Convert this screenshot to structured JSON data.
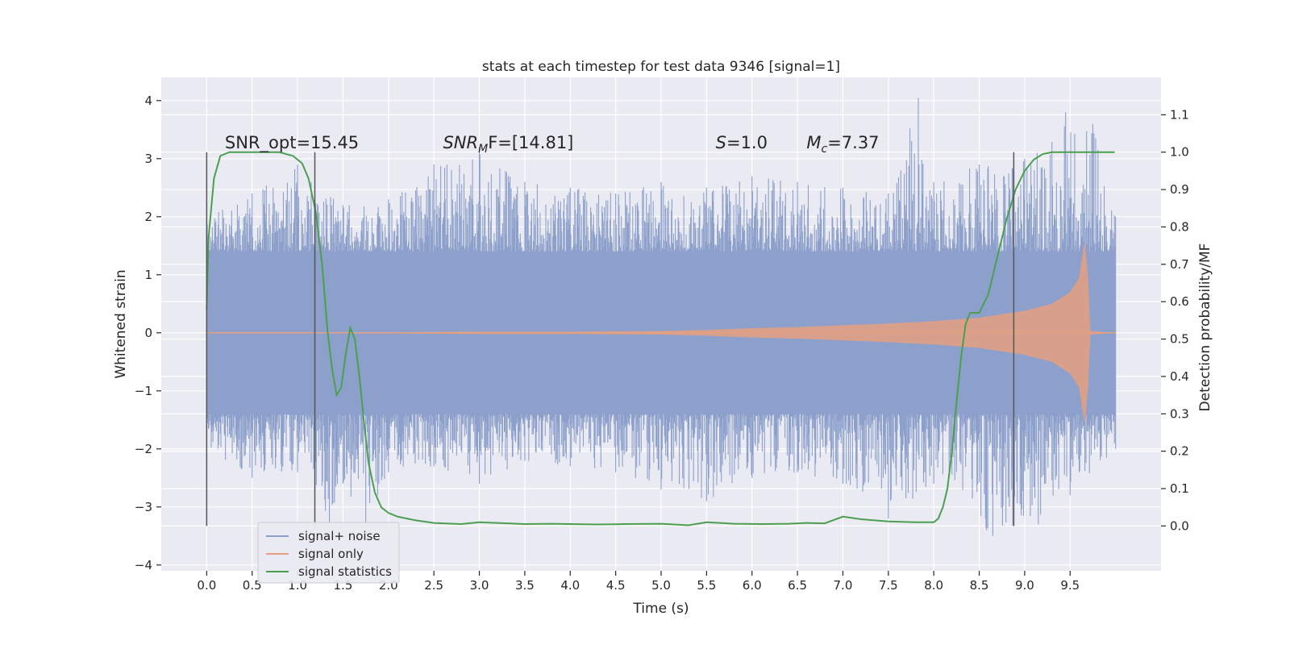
{
  "chart_data": {
    "type": "line",
    "title": "stats at each timestep for test data 9346 [signal=1]",
    "xlabel": "Time (s)",
    "ylabel": "Whitened strain",
    "y2label": "Detection probability/MF",
    "xlim": [
      -0.5,
      10.5
    ],
    "ylim": [
      -4.1,
      4.4
    ],
    "y2lim": [
      -0.12,
      1.2
    ],
    "xticks": [
      "0.0",
      "0.5",
      "1.0",
      "1.5",
      "2.0",
      "2.5",
      "3.0",
      "3.5",
      "4.0",
      "4.5",
      "5.0",
      "5.5",
      "6.0",
      "6.5",
      "7.0",
      "7.5",
      "8.0",
      "8.5",
      "9.0",
      "9.5"
    ],
    "xtick_values": [
      0.0,
      0.5,
      1.0,
      1.5,
      2.0,
      2.5,
      3.0,
      3.5,
      4.0,
      4.5,
      5.0,
      5.5,
      6.0,
      6.5,
      7.0,
      7.5,
      8.0,
      8.5,
      9.0,
      9.5
    ],
    "yticks": [
      "4",
      "3",
      "2",
      "1",
      "0",
      "−1",
      "−2",
      "−3",
      "−4"
    ],
    "ytick_values": [
      4,
      3,
      2,
      1,
      0,
      -1,
      -2,
      -3,
      -4
    ],
    "y2ticks": [
      "1.1",
      "1.0",
      "0.9",
      "0.8",
      "0.7",
      "0.6",
      "0.5",
      "0.4",
      "0.3",
      "0.2",
      "0.1",
      "0.0"
    ],
    "y2tick_values": [
      1.1,
      1.0,
      0.9,
      0.8,
      0.7,
      0.6,
      0.5,
      0.4,
      0.3,
      0.2,
      0.1,
      0.0
    ],
    "grid": true,
    "legend_position": "bottom-left",
    "annotations": [
      {
        "id": "snr-opt",
        "text": "SNR_opt=15.45",
        "x": 0.2,
        "y2": 1.01
      },
      {
        "id": "snr-mf",
        "text_main": "SNR",
        "text_sub": "M",
        "text_rest": "F=[14.81]",
        "italic_main": true,
        "x": 2.6,
        "y2": 1.01
      },
      {
        "id": "s-val",
        "text_main": "S",
        "text_rest": "=1.0",
        "italic_main": true,
        "x": 5.6,
        "y2": 1.01
      },
      {
        "id": "mc-val",
        "text_main": "M",
        "text_sub": "c",
        "text_rest": "=7.37",
        "italic_main": true,
        "x": 6.6,
        "y2": 1.01
      }
    ],
    "vertical_lines": [
      {
        "x": 0.0,
        "y2_from": 0.0,
        "y2_to": 1.0
      },
      {
        "x": 1.19,
        "y2_from": 0.0,
        "y2_to": 1.0
      },
      {
        "x": 8.88,
        "y2_from": 0.0,
        "y2_to": 1.0
      }
    ],
    "series": [
      {
        "name": "signal+ noise",
        "color": "#8da0cb",
        "kind": "noise-band",
        "x_range": [
          0.0,
          10.0
        ],
        "core_band": [
          -1.4,
          1.4
        ],
        "spike_range": [
          -3.6,
          4.1
        ],
        "envelope_high": [
          [
            0.0,
            2.0
          ],
          [
            0.5,
            2.4
          ],
          [
            1.0,
            2.9
          ],
          [
            1.5,
            2.2
          ],
          [
            2.0,
            2.3
          ],
          [
            2.5,
            2.9
          ],
          [
            3.0,
            3.2
          ],
          [
            3.5,
            2.6
          ],
          [
            4.0,
            2.5
          ],
          [
            4.5,
            2.4
          ],
          [
            5.0,
            2.6
          ],
          [
            5.5,
            2.5
          ],
          [
            6.0,
            2.7
          ],
          [
            6.5,
            2.6
          ],
          [
            7.0,
            2.5
          ],
          [
            7.5,
            2.4
          ],
          [
            7.83,
            4.05
          ],
          [
            8.0,
            2.6
          ],
          [
            8.5,
            2.9
          ],
          [
            9.0,
            3.0
          ],
          [
            9.45,
            3.8
          ],
          [
            9.75,
            3.6
          ],
          [
            10.0,
            2.0
          ]
        ],
        "envelope_low": [
          [
            0.0,
            -2.0
          ],
          [
            0.5,
            -2.5
          ],
          [
            1.0,
            -2.4
          ],
          [
            1.35,
            -3.3
          ],
          [
            1.5,
            -2.6
          ],
          [
            1.75,
            -3.3
          ],
          [
            2.0,
            -2.4
          ],
          [
            2.5,
            -2.3
          ],
          [
            3.0,
            -2.6
          ],
          [
            3.5,
            -2.2
          ],
          [
            4.0,
            -2.3
          ],
          [
            4.5,
            -2.4
          ],
          [
            5.0,
            -2.7
          ],
          [
            5.5,
            -2.9
          ],
          [
            6.0,
            -2.5
          ],
          [
            6.5,
            -2.4
          ],
          [
            7.0,
            -2.6
          ],
          [
            7.5,
            -3.2
          ],
          [
            8.0,
            -2.6
          ],
          [
            8.65,
            -3.5
          ],
          [
            9.15,
            -3.3
          ],
          [
            9.5,
            -2.8
          ],
          [
            10.0,
            -2.0
          ]
        ]
      },
      {
        "name": "signal only",
        "color": "#e5a07f",
        "kind": "chirp-envelope",
        "x": [
          0.0,
          1.0,
          2.0,
          3.0,
          4.0,
          5.0,
          5.5,
          6.0,
          6.5,
          7.0,
          7.5,
          8.0,
          8.5,
          9.0,
          9.3,
          9.5,
          9.6,
          9.66,
          9.7,
          9.72,
          10.0
        ],
        "amplitude": [
          0.01,
          0.01,
          0.01,
          0.02,
          0.02,
          0.03,
          0.05,
          0.08,
          0.1,
          0.13,
          0.16,
          0.2,
          0.26,
          0.38,
          0.5,
          0.7,
          0.95,
          1.6,
          0.9,
          0.03,
          0.0
        ]
      },
      {
        "name": "signal statistics",
        "color": "#4c9f50",
        "axis": "right",
        "x": [
          0.0,
          0.02,
          0.08,
          0.15,
          0.25,
          0.4,
          0.6,
          0.8,
          0.95,
          1.05,
          1.12,
          1.2,
          1.27,
          1.33,
          1.38,
          1.43,
          1.48,
          1.53,
          1.58,
          1.63,
          1.68,
          1.73,
          1.78,
          1.85,
          1.92,
          2.0,
          2.1,
          2.3,
          2.5,
          2.8,
          3.0,
          3.2,
          3.5,
          3.8,
          4.0,
          4.3,
          4.6,
          5.0,
          5.3,
          5.5,
          5.8,
          6.1,
          6.4,
          6.6,
          6.8,
          7.0,
          7.2,
          7.5,
          7.8,
          8.0,
          8.05,
          8.1,
          8.15,
          8.2,
          8.25,
          8.3,
          8.35,
          8.4,
          8.5,
          8.6,
          8.7,
          8.8,
          8.9,
          9.0,
          9.1,
          9.2,
          9.3,
          9.4,
          9.5,
          9.7,
          9.99
        ],
        "values": [
          0.58,
          0.77,
          0.93,
          0.99,
          1.0,
          1.0,
          1.0,
          1.0,
          0.99,
          0.97,
          0.93,
          0.84,
          0.7,
          0.52,
          0.42,
          0.35,
          0.37,
          0.46,
          0.53,
          0.5,
          0.4,
          0.28,
          0.17,
          0.09,
          0.05,
          0.035,
          0.025,
          0.015,
          0.008,
          0.005,
          0.01,
          0.008,
          0.005,
          0.006,
          0.005,
          0.004,
          0.005,
          0.006,
          0.002,
          0.01,
          0.006,
          0.005,
          0.006,
          0.008,
          0.007,
          0.025,
          0.018,
          0.012,
          0.01,
          0.01,
          0.02,
          0.05,
          0.1,
          0.2,
          0.33,
          0.45,
          0.54,
          0.57,
          0.57,
          0.62,
          0.72,
          0.82,
          0.9,
          0.95,
          0.98,
          0.995,
          1.0,
          1.0,
          1.0,
          1.0,
          1.0
        ]
      }
    ]
  }
}
